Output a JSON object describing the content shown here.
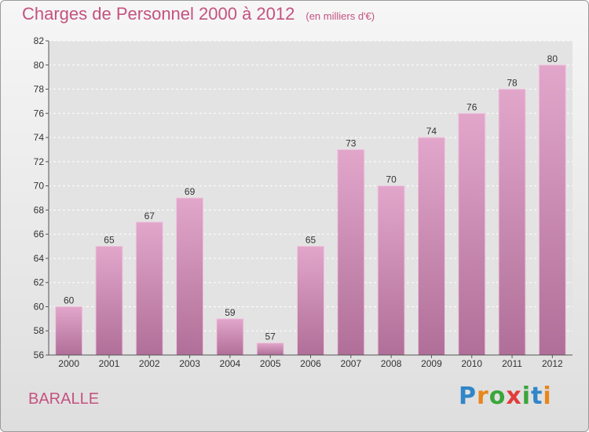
{
  "title": "Charges de Personnel 2000 à 2012",
  "unit": "(en milliers d'€)",
  "town": "BARALLE",
  "logo": "Proxiti",
  "colors": {
    "bar_top": "#e2a6cb",
    "bar_bottom": "#b06f98",
    "title": "#c4527f"
  },
  "chart_data": {
    "type": "bar",
    "categories": [
      "2000",
      "2001",
      "2002",
      "2003",
      "2004",
      "2005",
      "2006",
      "2007",
      "2008",
      "2009",
      "2010",
      "2011",
      "2012"
    ],
    "values": [
      60,
      65,
      67,
      69,
      59,
      57,
      65,
      73,
      70,
      74,
      76,
      78,
      80
    ],
    "ylim": [
      56,
      82
    ],
    "yticks": [
      56,
      58,
      60,
      62,
      64,
      66,
      68,
      70,
      72,
      74,
      76,
      78,
      80,
      82
    ],
    "grid": true,
    "legend": "none"
  }
}
